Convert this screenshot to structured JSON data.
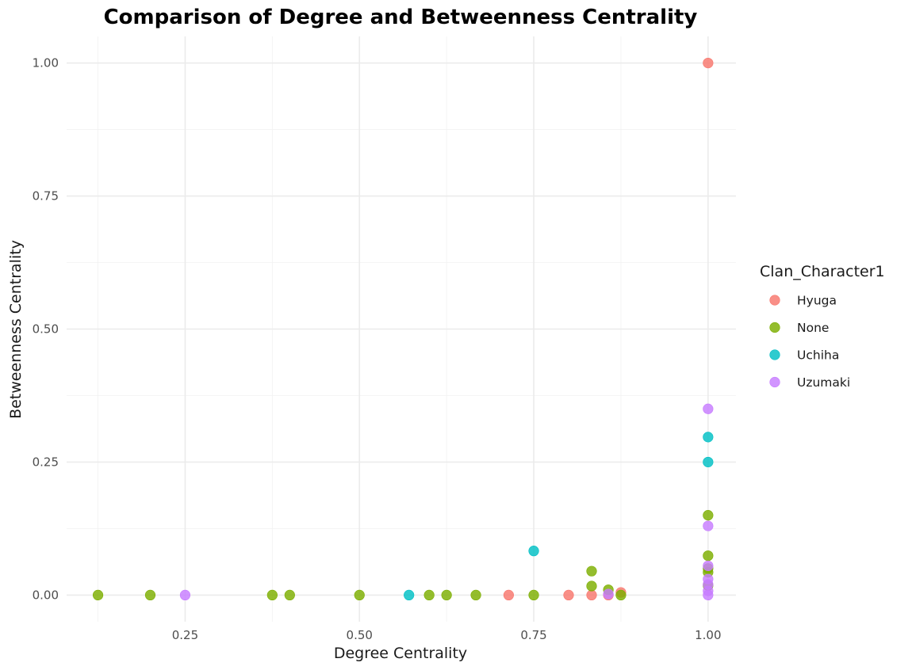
{
  "chart_data": {
    "type": "scatter",
    "title": "Comparison of Degree and Betweenness Centrality",
    "xlabel": "Degree Centrality",
    "ylabel": "Betweenness Centrality",
    "xlim": [
      0.08,
      1.04
    ],
    "ylim": [
      -0.05,
      1.05
    ],
    "x_ticks": [
      0.25,
      0.5,
      0.75,
      1.0
    ],
    "x_tick_labels": [
      "0.25",
      "0.50",
      "0.75",
      "1.00"
    ],
    "y_ticks": [
      0.0,
      0.25,
      0.5,
      0.75,
      1.0
    ],
    "y_tick_labels": [
      "0.00",
      "0.25",
      "0.50",
      "0.75",
      "1.00"
    ],
    "grid": true,
    "legend": {
      "title": "Clan_Character1",
      "placement": "right"
    },
    "series": [
      {
        "name": "Hyuga",
        "color": "#F8766D",
        "points": [
          {
            "x": 0.714,
            "y": 0.0
          },
          {
            "x": 0.8,
            "y": 0.0
          },
          {
            "x": 0.833,
            "y": 0.0
          },
          {
            "x": 0.857,
            "y": 0.0
          },
          {
            "x": 0.875,
            "y": 0.005
          },
          {
            "x": 1.0,
            "y": 1.0
          }
        ]
      },
      {
        "name": "None",
        "color": "#7CAE00",
        "points": [
          {
            "x": 0.125,
            "y": 0.0
          },
          {
            "x": 0.2,
            "y": 0.0
          },
          {
            "x": 0.375,
            "y": 0.0
          },
          {
            "x": 0.4,
            "y": 0.0
          },
          {
            "x": 0.5,
            "y": 0.0
          },
          {
            "x": 0.6,
            "y": 0.0
          },
          {
            "x": 0.625,
            "y": 0.0
          },
          {
            "x": 0.667,
            "y": 0.0
          },
          {
            "x": 0.75,
            "y": 0.0
          },
          {
            "x": 0.833,
            "y": 0.045
          },
          {
            "x": 0.833,
            "y": 0.017
          },
          {
            "x": 0.857,
            "y": 0.01
          },
          {
            "x": 0.875,
            "y": 0.0
          },
          {
            "x": 1.0,
            "y": 0.15
          },
          {
            "x": 1.0,
            "y": 0.074
          },
          {
            "x": 1.0,
            "y": 0.05
          },
          {
            "x": 1.0,
            "y": 0.043
          },
          {
            "x": 1.0,
            "y": 0.018
          }
        ]
      },
      {
        "name": "Uchiha",
        "color": "#00BFC4",
        "points": [
          {
            "x": 0.571,
            "y": 0.0
          },
          {
            "x": 0.75,
            "y": 0.083
          },
          {
            "x": 1.0,
            "y": 0.297
          },
          {
            "x": 1.0,
            "y": 0.25
          }
        ]
      },
      {
        "name": "Uzumaki",
        "color": "#C77CFF",
        "points": [
          {
            "x": 0.25,
            "y": 0.0
          },
          {
            "x": 0.857,
            "y": 0.002
          },
          {
            "x": 1.0,
            "y": 0.35
          },
          {
            "x": 1.0,
            "y": 0.13
          },
          {
            "x": 1.0,
            "y": 0.055
          },
          {
            "x": 1.0,
            "y": 0.03
          },
          {
            "x": 1.0,
            "y": 0.02
          },
          {
            "x": 1.0,
            "y": 0.008
          },
          {
            "x": 1.0,
            "y": 0.0
          }
        ]
      }
    ]
  }
}
